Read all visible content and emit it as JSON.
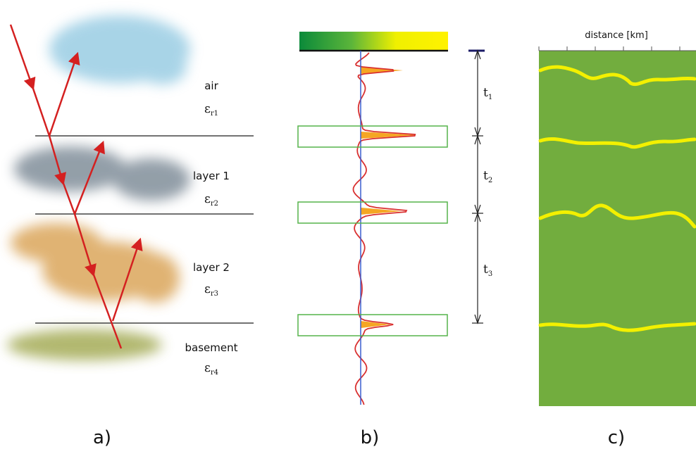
{
  "panel_a": {
    "label": "a)",
    "layers": [
      {
        "name": "air",
        "symbol": "ε",
        "subscript": "r1"
      },
      {
        "name": "layer 1",
        "symbol": "ε",
        "subscript": "r2"
      },
      {
        "name": "layer 2",
        "symbol": "ε",
        "subscript": "r3"
      },
      {
        "name": "basement",
        "symbol": "ε",
        "subscript": "r4"
      }
    ]
  },
  "panel_b": {
    "label": "b)",
    "intervals": [
      {
        "symbol": "t",
        "subscript": "1"
      },
      {
        "symbol": "t",
        "subscript": "2"
      },
      {
        "symbol": "t",
        "subscript": "3"
      }
    ]
  },
  "panel_c": {
    "label": "c)",
    "axis_label": "distance [km]"
  }
}
